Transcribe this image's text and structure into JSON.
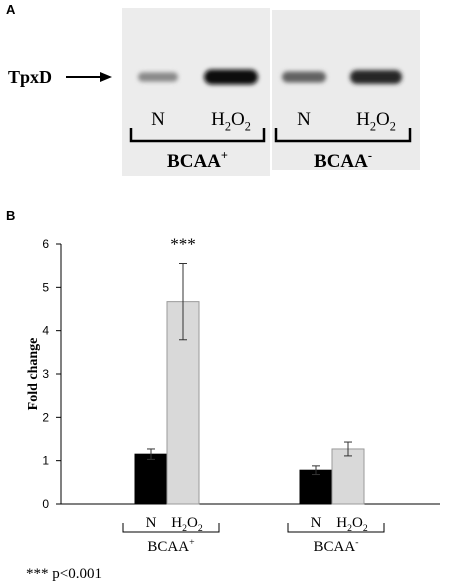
{
  "panel_a": {
    "letter": "A",
    "protein_label": "TpxD",
    "lanes": [
      {
        "label": "N",
        "sub": "",
        "tail": "",
        "intensity": 0.35
      },
      {
        "label": "H",
        "sub": "2",
        "tail": "O",
        "sub2": "2",
        "intensity": 1.0
      },
      {
        "label": "N",
        "sub": "",
        "tail": "",
        "intensity": 0.55
      },
      {
        "label": "H",
        "sub": "2",
        "tail": "O",
        "sub2": "2",
        "intensity": 0.85
      }
    ],
    "groups": [
      {
        "label": "BCAA",
        "sup": "+"
      },
      {
        "label": "BCAA",
        "sup": "-"
      }
    ]
  },
  "panel_b": {
    "letter": "B",
    "significance_marker": "***",
    "footnote": "*** p<0.001",
    "colors": {
      "N": "#000000",
      "H2O2": "#d9d9d9"
    }
  },
  "chart_data": {
    "type": "bar",
    "title": "",
    "xlabel": "",
    "ylabel": "Fold change",
    "ylim": [
      0,
      6
    ],
    "yticks": [
      0,
      1,
      2,
      3,
      4,
      5,
      6
    ],
    "categories": [
      "BCAA+",
      "BCAA-"
    ],
    "category_labels": [
      {
        "label": "BCAA",
        "sup": "+"
      },
      {
        "label": "BCAA",
        "sup": "-"
      }
    ],
    "bar_labels": [
      {
        "text": "N"
      },
      {
        "text": "H",
        "sub": "2",
        "tail": "O",
        "sub2": "2"
      }
    ],
    "series": [
      {
        "name": "N",
        "values": [
          1.15,
          0.78
        ],
        "errors": [
          0.12,
          0.1
        ]
      },
      {
        "name": "H2O2",
        "values": [
          4.67,
          1.27
        ],
        "errors": [
          0.88,
          0.16
        ]
      }
    ],
    "grid": false
  }
}
